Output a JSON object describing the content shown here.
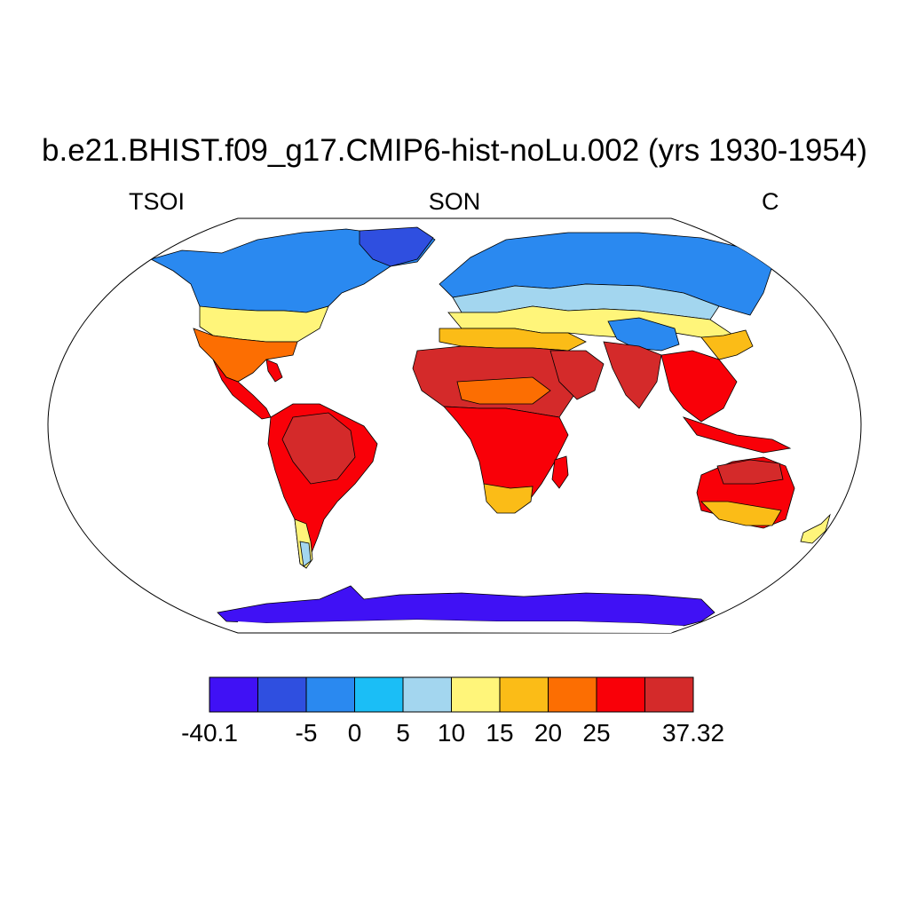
{
  "title": "b.e21.BHIST.f09_g17.CMIP6-hist-noLu.002 (yrs 1930-1954)",
  "subtitle": {
    "left": "TSOI",
    "center": "SON",
    "right": "C"
  },
  "colorbar": {
    "colors": [
      "#4011F5",
      "#2F4FE0",
      "#2A89F0",
      "#1BBEF6",
      "#A3D6EF",
      "#FFF57A",
      "#FBBC17",
      "#FC6E02",
      "#F90008",
      "#D42A2A"
    ],
    "labels": [
      "-40.1",
      "-5",
      "0",
      "5",
      "10",
      "15",
      "20",
      "25",
      "37.32"
    ]
  },
  "palette": {
    "land_border": "#000000",
    "frame": "#000000"
  }
}
